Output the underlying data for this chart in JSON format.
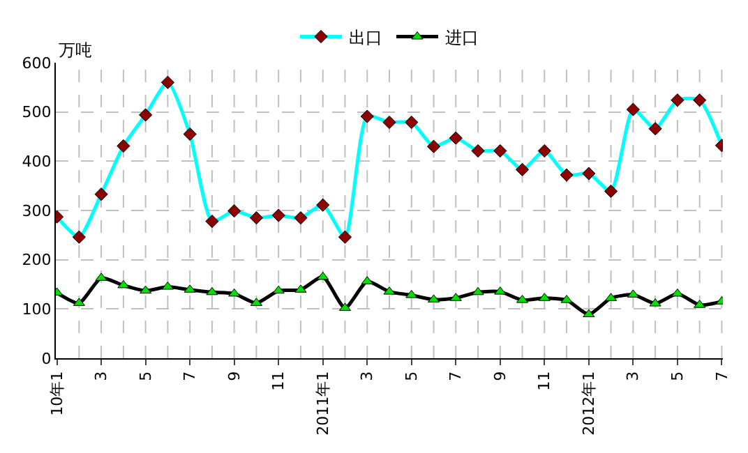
{
  "chart_data": {
    "type": "line",
    "ylabel": "万吨",
    "categories": [
      "10年1",
      null,
      "3",
      null,
      "5",
      null,
      "7",
      null,
      "9",
      null,
      "11",
      null,
      "2011年1",
      null,
      "3",
      null,
      "5",
      null,
      "7",
      null,
      "9",
      null,
      "11",
      null,
      "2012年1",
      null,
      "3",
      null,
      "5",
      null,
      "7"
    ],
    "series": [
      {
        "name": "出口",
        "color": "#00ffff",
        "marker": "diamond",
        "values": [
          287,
          246,
          333,
          431,
          494,
          560,
          455,
          278,
          299,
          285,
          290,
          285,
          311,
          246,
          491,
          479,
          479,
          430,
          447,
          421,
          421,
          383,
          421,
          372,
          375,
          339,
          505,
          466,
          524,
          524,
          432
        ]
      },
      {
        "name": "进口",
        "color": "#000000",
        "marker": "triangle",
        "values": [
          133,
          112,
          163,
          148,
          137,
          145,
          139,
          134,
          131,
          112,
          137,
          139,
          165,
          102,
          156,
          135,
          128,
          119,
          122,
          134,
          135,
          118,
          122,
          118,
          89,
          122,
          129,
          111,
          131,
          108,
          115
        ]
      }
    ],
    "ylim": [
      0,
      600
    ],
    "yticks": [
      0,
      100,
      200,
      300,
      400,
      500,
      600
    ],
    "grid": true,
    "legend": "top"
  }
}
